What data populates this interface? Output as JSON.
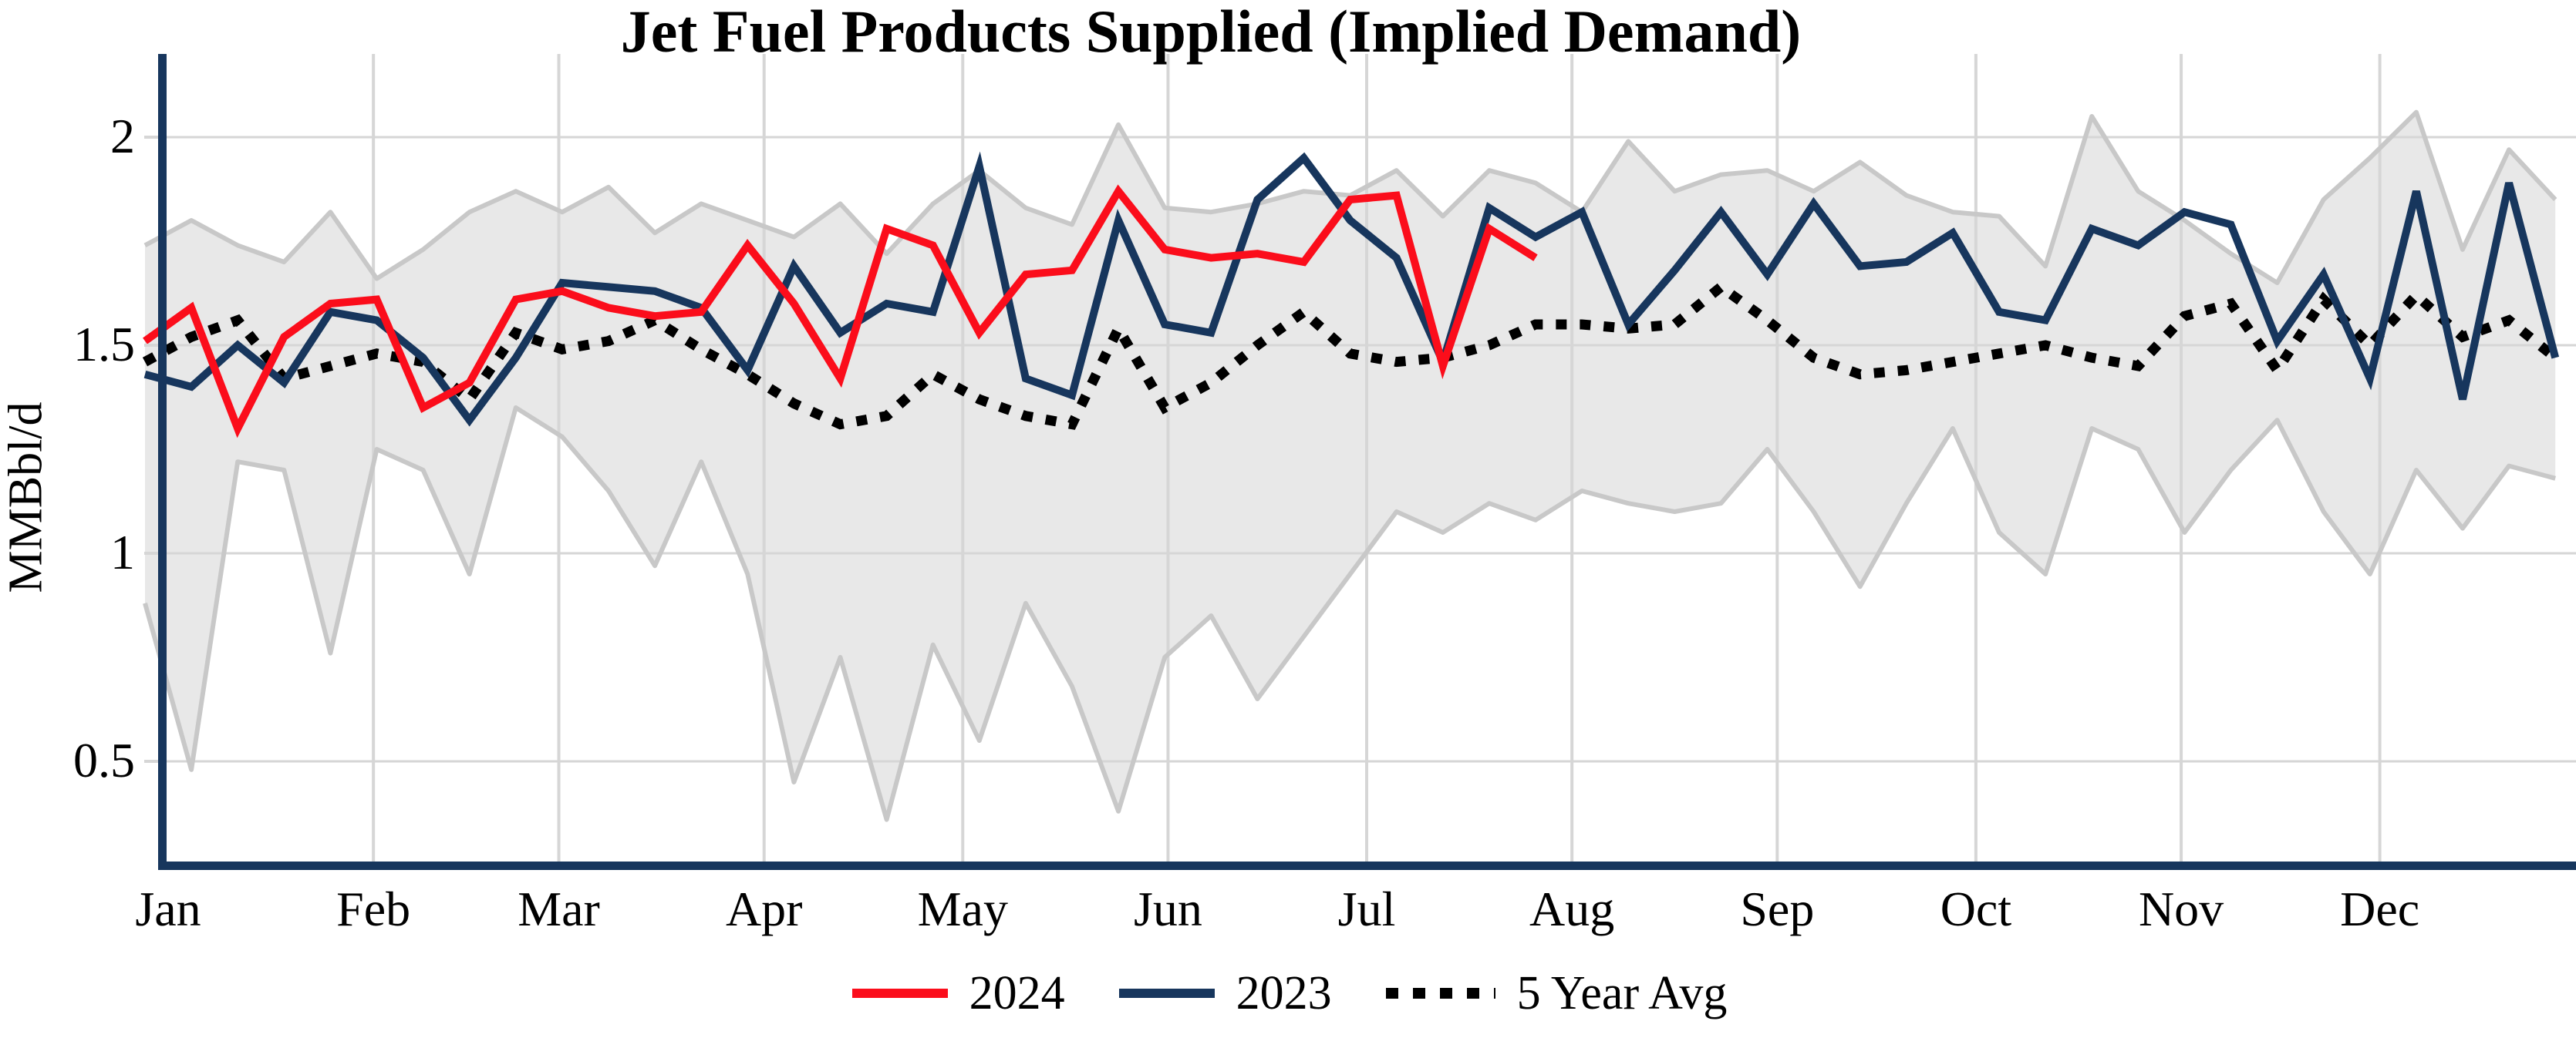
{
  "chart_data": {
    "type": "line",
    "title": "Jet Fuel Products Supplied (Implied Demand)",
    "ylabel": "MMBbl/d",
    "xlabel": "",
    "x_unit": "weekly observations, Jan–Dec",
    "x_tick_labels": [
      "Jan",
      "Feb",
      "Mar",
      "Apr",
      "May",
      "Jun",
      "Jul",
      "Aug",
      "Sep",
      "Oct",
      "Nov",
      "Dec"
    ],
    "month_day_offsets": [
      0,
      31,
      59,
      90,
      120,
      151,
      181,
      212,
      243,
      273,
      304,
      334
    ],
    "y_ticks": [
      0.5,
      1,
      1.5,
      2
    ],
    "y_tick_labels": [
      "0.5",
      "1",
      "1.5",
      "2"
    ],
    "ylim": [
      0.25,
      2.2
    ],
    "grid": true,
    "legend_position": "bottom-center",
    "colors": {
      "red_2024": "#fb0d1b",
      "navy_2023": "#17365d",
      "avg_black": "#000000",
      "band_fill": "#e8e8e8",
      "band_edge": "#c8c8c8",
      "gridline": "#d6d6d6",
      "axis_spine": "#17365d"
    },
    "legend": [
      {
        "label": "2024",
        "color": "#fb0d1b",
        "style": "solid"
      },
      {
        "label": "2023",
        "color": "#17365d",
        "style": "solid"
      },
      {
        "label": "5 Year Avg",
        "color": "#000000",
        "style": "dotted"
      }
    ],
    "series": [
      {
        "name": "2024",
        "color": "#fb0d1b",
        "style": "solid",
        "line_width": 10,
        "values": [
          1.51,
          1.59,
          1.3,
          1.52,
          1.6,
          1.61,
          1.35,
          1.41,
          1.61,
          1.63,
          1.59,
          1.57,
          1.58,
          1.74,
          1.6,
          1.42,
          1.78,
          1.74,
          1.53,
          1.67,
          1.68,
          1.87,
          1.73,
          1.71,
          1.72,
          1.7,
          1.85,
          1.86,
          1.45,
          1.78,
          1.71
        ]
      },
      {
        "name": "2023",
        "color": "#17365d",
        "style": "solid",
        "line_width": 10,
        "values": [
          1.43,
          1.4,
          1.5,
          1.41,
          1.58,
          1.56,
          1.47,
          1.32,
          1.47,
          1.65,
          1.64,
          1.63,
          1.59,
          1.44,
          1.69,
          1.53,
          1.6,
          1.58,
          1.93,
          1.42,
          1.38,
          1.8,
          1.55,
          1.53,
          1.85,
          1.95,
          1.8,
          1.71,
          1.46,
          1.83,
          1.76,
          1.82,
          1.55,
          1.68,
          1.82,
          1.67,
          1.84,
          1.69,
          1.7,
          1.77,
          1.58,
          1.56,
          1.78,
          1.74,
          1.82,
          1.79,
          1.51,
          1.67,
          1.42,
          1.87,
          1.37,
          1.89,
          1.47
        ]
      },
      {
        "name": "5 Year Avg",
        "color": "#000000",
        "style": "dotted",
        "line_width": 13,
        "values": [
          1.46,
          1.52,
          1.56,
          1.42,
          1.45,
          1.48,
          1.46,
          1.37,
          1.53,
          1.49,
          1.51,
          1.56,
          1.49,
          1.43,
          1.36,
          1.31,
          1.33,
          1.43,
          1.37,
          1.33,
          1.31,
          1.54,
          1.35,
          1.41,
          1.5,
          1.58,
          1.48,
          1.46,
          1.47,
          1.5,
          1.55,
          1.55,
          1.54,
          1.55,
          1.64,
          1.56,
          1.47,
          1.43,
          1.44,
          1.46,
          1.48,
          1.5,
          1.47,
          1.45,
          1.57,
          1.6,
          1.44,
          1.61,
          1.5,
          1.62,
          1.52,
          1.56,
          1.47
        ]
      }
    ],
    "band": {
      "name": "5 Year Range",
      "fill": "#e8e8e8",
      "edge": "#c8c8c8",
      "top": [
        1.74,
        1.8,
        1.74,
        1.7,
        1.82,
        1.66,
        1.73,
        1.82,
        1.87,
        1.82,
        1.88,
        1.77,
        1.84,
        1.8,
        1.76,
        1.84,
        1.72,
        1.84,
        1.92,
        1.83,
        1.79,
        2.03,
        1.83,
        1.82,
        1.84,
        1.87,
        1.86,
        1.92,
        1.81,
        1.92,
        1.89,
        1.82,
        1.99,
        1.87,
        1.91,
        1.92,
        1.87,
        1.94,
        1.86,
        1.82,
        1.81,
        1.69,
        2.05,
        1.87,
        1.8,
        1.72,
        1.65,
        1.85,
        1.95,
        2.06,
        1.73,
        1.97,
        1.85
      ],
      "bottom": [
        0.88,
        0.48,
        1.22,
        1.2,
        0.76,
        1.25,
        1.2,
        0.95,
        1.35,
        1.28,
        1.15,
        0.97,
        1.22,
        0.95,
        0.45,
        0.75,
        0.36,
        0.78,
        0.55,
        0.88,
        0.68,
        0.38,
        0.75,
        0.85,
        0.65,
        0.8,
        0.95,
        1.1,
        1.05,
        1.12,
        1.08,
        1.15,
        1.12,
        1.1,
        1.12,
        1.25,
        1.1,
        0.92,
        1.12,
        1.3,
        1.05,
        0.95,
        1.3,
        1.25,
        1.05,
        1.2,
        1.32,
        1.1,
        0.95,
        1.2,
        1.06,
        1.21,
        1.18
      ]
    }
  }
}
